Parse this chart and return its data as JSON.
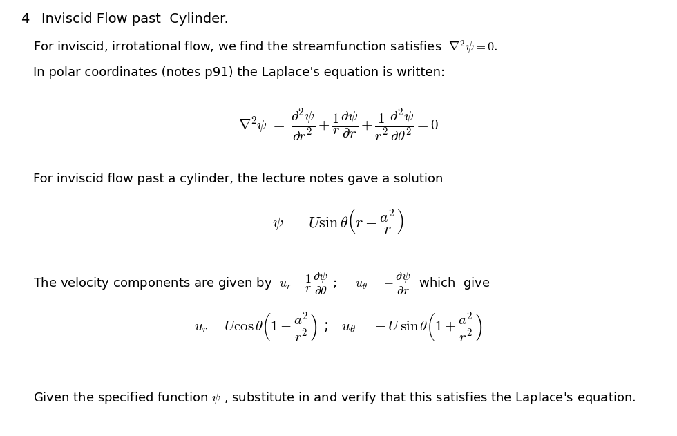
{
  "background_color": "#ffffff",
  "title_number": "4",
  "title_text": "Inviscid Flow past  Cylinder.",
  "font_size_title": 14,
  "font_size_body": 13,
  "font_size_eq": 13
}
